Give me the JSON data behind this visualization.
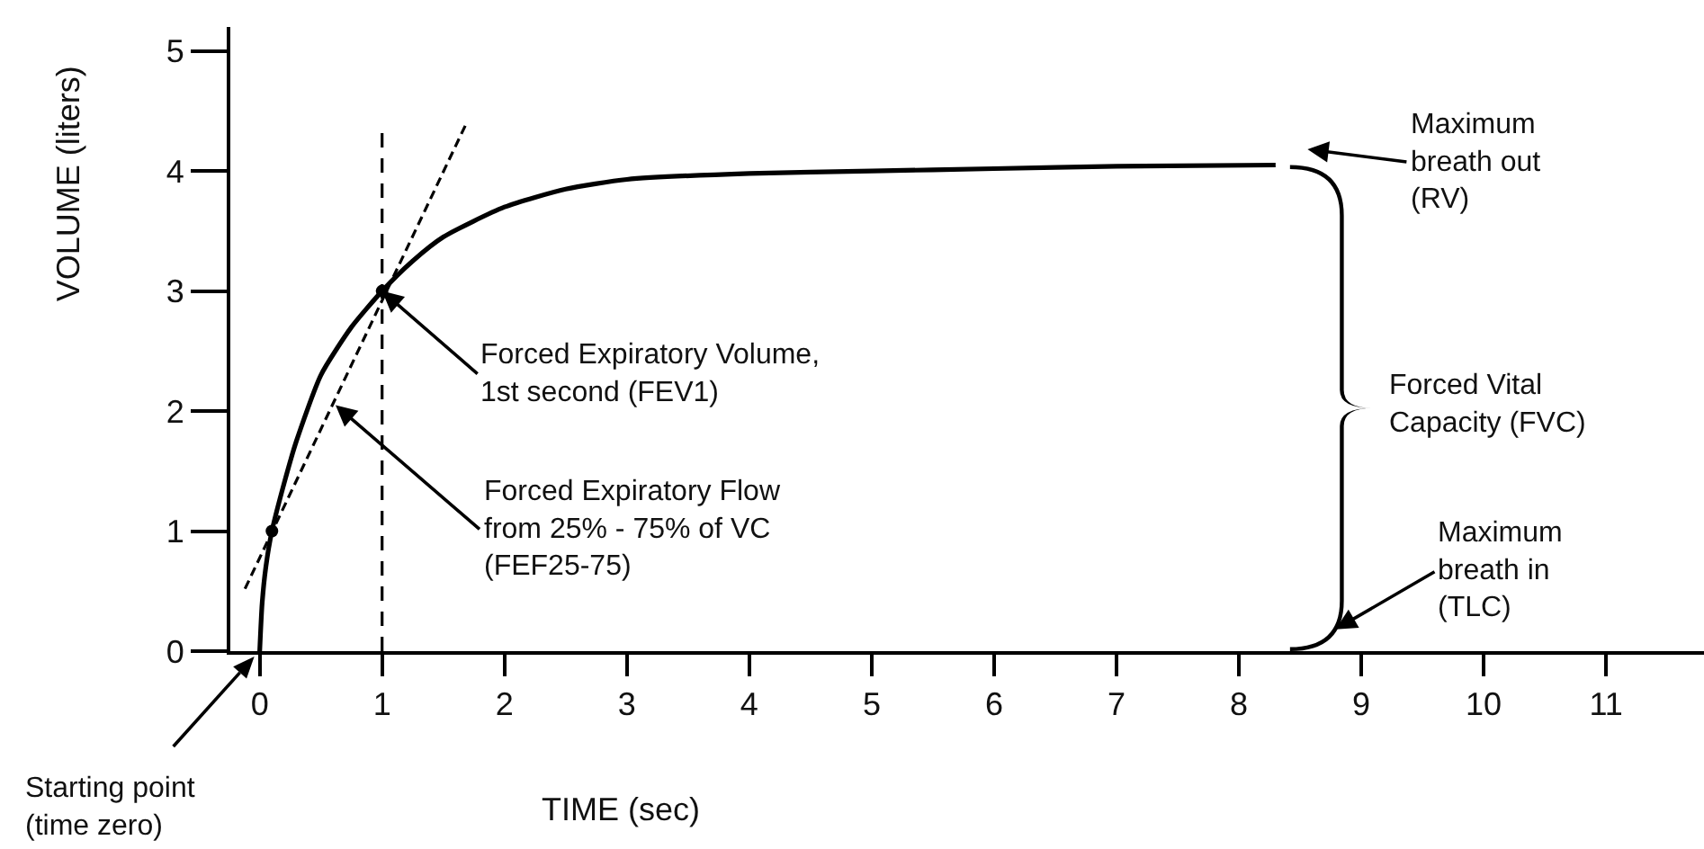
{
  "chart_data": {
    "type": "line",
    "xlabel": "TIME (sec)",
    "ylabel": "VOLUME (liters)",
    "xlim": [
      -0.24,
      11.8
    ],
    "ylim": [
      0,
      5.2
    ],
    "xticks": [
      0,
      1,
      2,
      3,
      4,
      5,
      6,
      7,
      8,
      9,
      10,
      11
    ],
    "yticks": [
      0,
      1,
      2,
      3,
      4,
      5
    ],
    "grid": false,
    "series": [
      {
        "type": "line",
        "color": "#000000",
        "line_style": "solid",
        "marker": "none",
        "x": [
          0,
          0.02,
          0.05,
          0.1,
          0.2,
          0.3,
          0.5,
          0.75,
          1,
          1.25,
          1.5,
          2,
          2.5,
          3,
          4,
          5,
          6,
          7,
          8.3
        ],
        "values": [
          0,
          0.4,
          0.7,
          1.0,
          1.4,
          1.75,
          2.3,
          2.7,
          3.0,
          3.25,
          3.45,
          3.7,
          3.85,
          3.93,
          3.98,
          4.0,
          4.02,
          4.04,
          4.05
        ]
      },
      {
        "type": "line",
        "color": "#000000",
        "line_style": "dashed",
        "marker": "none",
        "x": [
          -0.12,
          1.69
        ],
        "values": [
          0.52,
          4.4
        ]
      },
      {
        "type": "scatter",
        "color": "#000000",
        "marker": "circle",
        "x": [
          0.1,
          1
        ],
        "values": [
          1,
          3
        ]
      }
    ],
    "annotations": [
      {
        "text": "Forced Expiratory Volume,\n1st second (FEV1)",
        "x": 1,
        "y": 3
      },
      {
        "text": "Forced Expiratory Flow\nfrom 25% - 75% of VC\n(FEF25-75)",
        "x": 0.62,
        "y": 2.05
      },
      "Starting point\n(time zero)",
      "Maximum\nbreath out\n(RV)",
      "Maximum\nbreath in\n(TLC)",
      "Forced Vital\nCapacity (FVC)"
    ],
    "ref_lines": [
      {
        "axis": "x",
        "value": 1,
        "color": "#000000",
        "line_style": "dashed"
      }
    ]
  }
}
